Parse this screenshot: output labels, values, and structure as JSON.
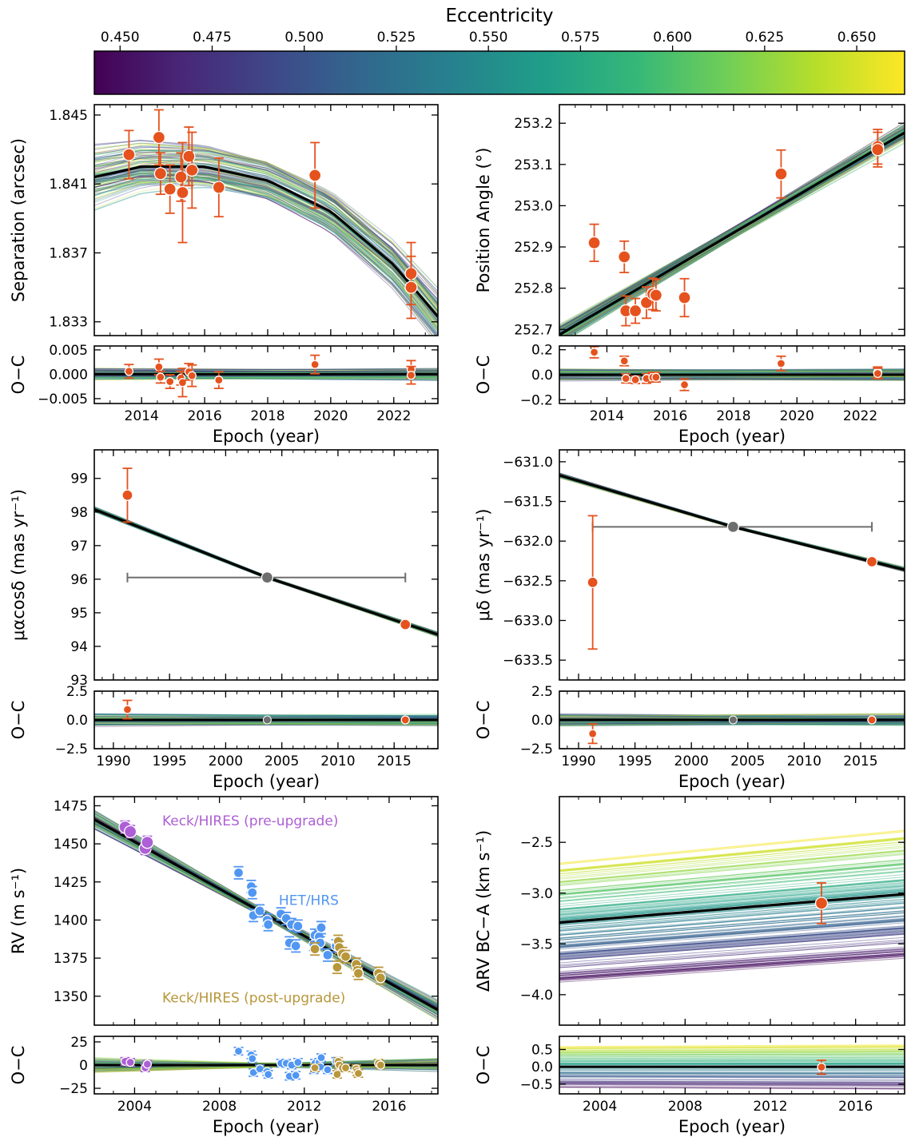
{
  "colorbar": {
    "label": "Eccentricity",
    "ticks": [
      "0.450",
      "0.475",
      "0.500",
      "0.525",
      "0.550",
      "0.575",
      "0.600",
      "0.625",
      "0.650"
    ],
    "range": [
      0.443,
      0.663
    ],
    "colors": [
      "#440154",
      "#482878",
      "#3e4989",
      "#31688e",
      "#26828e",
      "#1f9e89",
      "#35b779",
      "#6ece58",
      "#b5de2b",
      "#fde725"
    ]
  },
  "styles": {
    "data_color": "#e5521e",
    "data_edge": "#ffffff",
    "gaia_color": "#6e6e6e",
    "model_color": "#000000",
    "pre_color": "#ad5fd6",
    "het_color": "#5196f2",
    "post_color": "#b8963a"
  },
  "chart_data": [
    {
      "id": "separation",
      "type": "scatter",
      "ylabel": "Separation (arcsec)",
      "xlim": [
        2012.5,
        2023.4
      ],
      "ylim": [
        1.8322,
        1.8456
      ],
      "yticks": [
        "1.845",
        "1.841",
        "1.837",
        "1.833"
      ],
      "model": {
        "x": [
          2012.5,
          2014,
          2016,
          2018,
          2020,
          2022,
          2023.4
        ],
        "y": [
          1.8414,
          1.842,
          1.842,
          1.8412,
          1.8394,
          1.8363,
          1.8333
        ]
      },
      "points": [
        {
          "x": 2013.6,
          "y": 1.8427,
          "err": 0.0014
        },
        {
          "x": 2014.55,
          "y": 1.8437,
          "err": 0.0016
        },
        {
          "x": 2014.6,
          "y": 1.8416,
          "err": 0.0012
        },
        {
          "x": 2014.9,
          "y": 1.8407,
          "err": 0.0014
        },
        {
          "x": 2015.25,
          "y": 1.8414,
          "err": 0.0014
        },
        {
          "x": 2015.3,
          "y": 1.8405,
          "err": 0.0029
        },
        {
          "x": 2015.5,
          "y": 1.8426,
          "err": 0.0017
        },
        {
          "x": 2015.6,
          "y": 1.8418,
          "err": 0.0022
        },
        {
          "x": 2016.45,
          "y": 1.8408,
          "err": 0.0017
        },
        {
          "x": 2019.5,
          "y": 1.8415,
          "err": 0.0019
        },
        {
          "x": 2022.55,
          "y": 1.8358,
          "err": 0.0018
        },
        {
          "x": 2022.55,
          "y": 1.835,
          "err": 0.0018
        }
      ],
      "residuals": {
        "ylabel": "O−C",
        "ylim": [
          -0.006,
          0.0058
        ],
        "yticks": [
          "0.005",
          "0.000",
          "−0.005"
        ],
        "xticks": [
          "2014",
          "2016",
          "2018",
          "2020",
          "2022"
        ],
        "xlabel": "Epoch (year)",
        "points": [
          {
            "x": 2013.6,
            "y": 0.0006,
            "err": 0.0014
          },
          {
            "x": 2014.55,
            "y": 0.0015,
            "err": 0.0016
          },
          {
            "x": 2014.6,
            "y": -0.0006,
            "err": 0.0012
          },
          {
            "x": 2014.9,
            "y": -0.0015,
            "err": 0.0014
          },
          {
            "x": 2015.25,
            "y": -0.0008,
            "err": 0.0014
          },
          {
            "x": 2015.3,
            "y": -0.0017,
            "err": 0.0029
          },
          {
            "x": 2015.5,
            "y": 0.0005,
            "err": 0.0017
          },
          {
            "x": 2015.6,
            "y": -0.0003,
            "err": 0.0022
          },
          {
            "x": 2016.45,
            "y": -0.0012,
            "err": 0.0017
          },
          {
            "x": 2019.5,
            "y": 0.002,
            "err": 0.0019
          },
          {
            "x": 2022.55,
            "y": 0.001,
            "err": 0.0018
          },
          {
            "x": 2022.55,
            "y": -0.0002,
            "err": 0.0018
          }
        ]
      }
    },
    {
      "id": "position-angle",
      "type": "scatter",
      "ylabel": "Position Angle (°)",
      "xlim": [
        2012.5,
        2023.4
      ],
      "ylim": [
        252.685,
        253.245
      ],
      "yticks": [
        "253.2",
        "253.1",
        "253.0",
        "252.9",
        "252.8",
        "252.7"
      ],
      "model": {
        "x": [
          2012.5,
          2023.4
        ],
        "y": [
          252.687,
          253.177
        ]
      },
      "points": [
        {
          "x": 2013.6,
          "y": 252.91,
          "err": 0.045
        },
        {
          "x": 2014.55,
          "y": 252.876,
          "err": 0.038
        },
        {
          "x": 2014.6,
          "y": 252.745,
          "err": 0.036
        },
        {
          "x": 2014.9,
          "y": 252.745,
          "err": 0.03
        },
        {
          "x": 2015.25,
          "y": 252.765,
          "err": 0.038
        },
        {
          "x": 2015.45,
          "y": 252.786,
          "err": 0.038
        },
        {
          "x": 2015.55,
          "y": 252.783,
          "err": 0.038
        },
        {
          "x": 2016.45,
          "y": 252.777,
          "err": 0.046
        },
        {
          "x": 2019.5,
          "y": 253.077,
          "err": 0.058
        },
        {
          "x": 2022.55,
          "y": 253.143,
          "err": 0.042
        },
        {
          "x": 2022.55,
          "y": 253.136,
          "err": 0.042
        }
      ],
      "residuals": {
        "ylabel": "O−C",
        "ylim": [
          -0.23,
          0.23
        ],
        "yticks": [
          "0.2",
          "0.0",
          "−0.2"
        ],
        "xticks": [
          "2014",
          "2016",
          "2018",
          "2020",
          "2022"
        ],
        "xlabel": "Epoch (year)",
        "points": [
          {
            "x": 2013.6,
            "y": 0.18,
            "err": 0.045
          },
          {
            "x": 2014.55,
            "y": 0.11,
            "err": 0.038
          },
          {
            "x": 2014.6,
            "y": -0.03,
            "err": 0.036
          },
          {
            "x": 2014.9,
            "y": -0.04,
            "err": 0.03
          },
          {
            "x": 2015.25,
            "y": -0.03,
            "err": 0.038
          },
          {
            "x": 2015.45,
            "y": -0.02,
            "err": 0.038
          },
          {
            "x": 2015.55,
            "y": -0.02,
            "err": 0.038
          },
          {
            "x": 2016.45,
            "y": -0.08,
            "err": 0.046
          },
          {
            "x": 2019.5,
            "y": 0.09,
            "err": 0.058
          },
          {
            "x": 2022.55,
            "y": 0.02,
            "err": 0.042
          },
          {
            "x": 2022.55,
            "y": 0.01,
            "err": 0.042
          }
        ]
      }
    },
    {
      "id": "pm-ra",
      "type": "scatter",
      "ylabel": "μαcosδ (mas yr⁻¹)",
      "xlim": [
        1988.3,
        2018.9
      ],
      "ylim": [
        93.0,
        99.85
      ],
      "yticks": [
        "99",
        "98",
        "97",
        "96",
        "95",
        "94",
        "93"
      ],
      "model": {
        "x": [
          1988.3,
          2003.7,
          2018.9
        ],
        "y": [
          98.08,
          96.05,
          94.35
        ]
      },
      "points": [
        {
          "x": 1991.25,
          "y": 98.5,
          "err": 0.8
        },
        {
          "x": 2016.0,
          "y": 94.65,
          "err": 0.03
        }
      ],
      "gaia_point": {
        "x": 2003.7,
        "y": 96.05,
        "xmin": 1991.25,
        "xmax": 2016.0
      },
      "residuals": {
        "ylabel": "O−C",
        "ylim": [
          -2.5,
          2.5
        ],
        "yticks": [
          "2.5",
          "0.0",
          "−2.5"
        ],
        "xticks": [
          "1990",
          "1995",
          "2000",
          "2005",
          "2010",
          "2015"
        ],
        "xlabel": "Epoch (year)",
        "points": [
          {
            "x": 1991.25,
            "y": 0.9,
            "err": 0.8
          },
          {
            "x": 2016.0,
            "y": 0.0,
            "err": 0.03
          }
        ],
        "gaia_point": {
          "x": 2003.7,
          "y": 0.0
        }
      }
    },
    {
      "id": "pm-dec",
      "type": "scatter",
      "ylabel": "μδ (mas yr⁻¹)",
      "xlim": [
        1988.3,
        2018.9
      ],
      "ylim": [
        -633.75,
        -630.85
      ],
      "yticks": [
        "−631.0",
        "−631.5",
        "−632.0",
        "−632.5",
        "−633.0",
        "−633.5"
      ],
      "model": {
        "x": [
          1988.3,
          2003.7,
          2018.9
        ],
        "y": [
          -631.17,
          -631.82,
          -632.36
        ]
      },
      "points": [
        {
          "x": 1991.25,
          "y": -632.52,
          "err": 0.84
        },
        {
          "x": 2016.0,
          "y": -632.26,
          "err": 0.02
        }
      ],
      "gaia_point": {
        "x": 2003.7,
        "y": -631.82,
        "xmin": 1991.25,
        "xmax": 2016.0
      },
      "residuals": {
        "ylabel": "O−C",
        "ylim": [
          -2.5,
          2.5
        ],
        "yticks": [
          "2.5",
          "0.0",
          "−2.5"
        ],
        "xticks": [
          "1990",
          "1995",
          "2000",
          "2005",
          "2010",
          "2015"
        ],
        "xlabel": "Epoch (year)",
        "points": [
          {
            "x": 1991.25,
            "y": -1.2,
            "err": 0.84
          },
          {
            "x": 2016.0,
            "y": 0.0,
            "err": 0.02
          }
        ],
        "gaia_point": {
          "x": 2003.7,
          "y": 0.0
        }
      }
    },
    {
      "id": "rv",
      "type": "scatter",
      "ylabel": "RV (m s⁻¹)",
      "xlim": [
        2002.1,
        2018.3
      ],
      "ylim": [
        1331,
        1481
      ],
      "yticks": [
        "1475",
        "1450",
        "1425",
        "1400",
        "1375",
        "1350"
      ],
      "model": {
        "x": [
          2002.1,
          2018.3
        ],
        "y": [
          1466,
          1341
        ]
      },
      "instruments": [
        {
          "name": "Keck/HIRES (pre-upgrade)",
          "color_key": "pre_color",
          "label_x": 2005.3,
          "label_y": 1462,
          "points": [
            [
              2003.55,
              1461
            ],
            [
              2003.8,
              1458
            ],
            [
              2004.5,
              1447
            ],
            [
              2004.6,
              1451
            ]
          ]
        },
        {
          "name": "HET/HRS",
          "color_key": "het_color",
          "label_x": 2010.8,
          "label_y": 1410,
          "points": [
            [
              2008.9,
              1431
            ],
            [
              2009.5,
              1422
            ],
            [
              2009.55,
              1418
            ],
            [
              2009.6,
              1403
            ],
            [
              2009.9,
              1406
            ],
            [
              2010.25,
              1400
            ],
            [
              2010.3,
              1397
            ],
            [
              2010.9,
              1404
            ],
            [
              2011.15,
              1401
            ],
            [
              2011.3,
              1385
            ],
            [
              2011.4,
              1397
            ],
            [
              2011.6,
              1383
            ],
            [
              2011.7,
              1396
            ],
            [
              2012.45,
              1384
            ],
            [
              2012.5,
              1390
            ],
            [
              2012.7,
              1389
            ],
            [
              2012.8,
              1395
            ],
            [
              2012.75,
              1385
            ],
            [
              2013.1,
              1377
            ],
            [
              2013.5,
              1383
            ]
          ]
        },
        {
          "name": "Keck/HIRES (post-upgrade)",
          "color_key": "post_color",
          "label_x": 2005.3,
          "label_y": 1346,
          "points": [
            [
              2012.5,
              1381
            ],
            [
              2013.55,
              1369
            ],
            [
              2013.6,
              1386
            ],
            [
              2013.65,
              1382
            ],
            [
              2013.8,
              1378
            ],
            [
              2013.95,
              1376
            ],
            [
              2014.45,
              1371
            ],
            [
              2014.5,
              1367
            ],
            [
              2014.55,
              1365
            ],
            [
              2015.5,
              1365
            ],
            [
              2015.6,
              1362
            ]
          ]
        }
      ],
      "residuals": {
        "ylabel": "O−C",
        "ylim": [
          -31,
          31
        ],
        "yticks": [
          "25",
          "0",
          "−25"
        ],
        "xticks": [
          "2004",
          "2008",
          "2012",
          "2016"
        ],
        "xlabel": "Epoch (year)",
        "instruments": [
          {
            "color_key": "pre_color",
            "points": [
              [
                2003.55,
                4
              ],
              [
                2003.8,
                3
              ],
              [
                2004.5,
                -3
              ],
              [
                2004.6,
                1
              ]
            ]
          },
          {
            "color_key": "het_color",
            "points": [
              [
                2008.9,
                15
              ],
              [
                2009.5,
                11
              ],
              [
                2009.55,
                7
              ],
              [
                2009.6,
                -8
              ],
              [
                2009.9,
                -4
              ],
              [
                2010.25,
                -7
              ],
              [
                2010.3,
                -10
              ],
              [
                2010.9,
                2
              ],
              [
                2011.15,
                2
              ],
              [
                2011.3,
                -12
              ],
              [
                2011.4,
                0
              ],
              [
                2011.6,
                -11
              ],
              [
                2011.7,
                3
              ],
              [
                2012.45,
                -5
              ],
              [
                2012.5,
                2
              ],
              [
                2012.7,
                3
              ],
              [
                2012.8,
                8
              ],
              [
                2012.75,
                -2
              ],
              [
                2013.1,
                -5
              ],
              [
                2013.5,
                4
              ]
            ]
          },
          {
            "color_key": "post_color",
            "points": [
              [
                2012.5,
                -3
              ],
              [
                2013.55,
                -10
              ],
              [
                2013.6,
                4
              ],
              [
                2013.65,
                0
              ],
              [
                2013.8,
                -3
              ],
              [
                2013.95,
                -3
              ],
              [
                2014.45,
                -4
              ],
              [
                2014.5,
                -7
              ],
              [
                2014.55,
                -9
              ],
              [
                2015.5,
                2
              ],
              [
                2015.6,
                0
              ]
            ]
          }
        ]
      }
    },
    {
      "id": "delta-rv",
      "type": "scatter",
      "ylabel": "ΔRV BC−A (km s⁻¹)",
      "xlim": [
        2002.1,
        2018.3
      ],
      "ylim": [
        -4.3,
        -2.05
      ],
      "yticks": [
        "−2.5",
        "−3.0",
        "−3.5",
        "−4.0"
      ],
      "model": {
        "x": [
          2002.1,
          2018.3
        ],
        "y": [
          -3.29,
          -3.01
        ]
      },
      "points": [
        {
          "x": 2014.4,
          "y": -3.1,
          "err": 0.2
        }
      ],
      "residuals": {
        "ylabel": "O−C",
        "ylim": [
          -0.78,
          0.88
        ],
        "yticks": [
          "0.5",
          "0.0",
          "−0.5"
        ],
        "xticks": [
          "2004",
          "2008",
          "2012",
          "2016"
        ],
        "xlabel": "Epoch (year)",
        "points": [
          {
            "x": 2014.4,
            "y": -0.01,
            "err": 0.2
          }
        ]
      }
    }
  ]
}
